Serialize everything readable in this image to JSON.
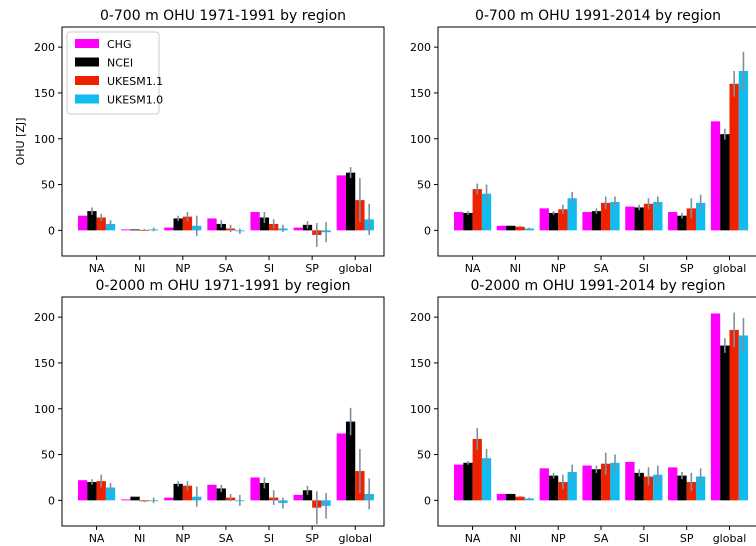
{
  "colors": {
    "CHG": "#ff00ff",
    "NCEI": "#000000",
    "UKESM1.1": "#ee2200",
    "UKESM1.0": "#11bbee",
    "error_bar": "#7f8fa0"
  },
  "chart_data": [
    {
      "type": "bar",
      "title": "0-700 m OHU 1971-1991 by region",
      "ylabel": "OHU [ZJ]",
      "categories": [
        "NA",
        "NI",
        "NP",
        "SA",
        "SI",
        "SP",
        "global"
      ],
      "ylim": [
        -28,
        222
      ],
      "yticks": [
        0,
        50,
        100,
        150,
        200
      ],
      "legend": [
        "CHG",
        "NCEI",
        "UKESM1.1",
        "UKESM1.0"
      ],
      "legend_position": "upper-left",
      "series": [
        {
          "name": "CHG",
          "values": [
            16,
            1,
            3,
            13,
            20,
            3,
            60
          ],
          "err": [
            null,
            null,
            null,
            null,
            null,
            null,
            null
          ]
        },
        {
          "name": "NCEI",
          "values": [
            21,
            1,
            13,
            7,
            14,
            6,
            63
          ],
          "err": [
            4,
            0.5,
            3,
            4,
            6,
            4,
            6
          ]
        },
        {
          "name": "UKESM1.1",
          "values": [
            14,
            0.5,
            15,
            2,
            7,
            -5,
            33
          ],
          "err": [
            4,
            1,
            5,
            4,
            5,
            13,
            24
          ]
        },
        {
          "name": "UKESM1.0",
          "values": [
            7,
            1,
            5,
            -1,
            2,
            -2,
            12
          ],
          "err": [
            4,
            2,
            11,
            3,
            4,
            11,
            17
          ]
        }
      ]
    },
    {
      "type": "bar",
      "title": "0-700 m OHU 1991-2014 by region",
      "ylabel": "",
      "categories": [
        "NA",
        "NI",
        "NP",
        "SA",
        "SI",
        "SP",
        "global"
      ],
      "ylim": [
        -28,
        222
      ],
      "yticks": [
        0,
        50,
        100,
        150,
        200
      ],
      "series": [
        {
          "name": "CHG",
          "values": [
            20,
            5,
            24,
            20,
            26,
            20,
            119
          ],
          "err": [
            null,
            null,
            null,
            null,
            null,
            null,
            null
          ]
        },
        {
          "name": "NCEI",
          "values": [
            19,
            5,
            19,
            21,
            25,
            16,
            105
          ],
          "err": [
            2,
            0.5,
            2,
            3,
            3,
            3,
            6
          ]
        },
        {
          "name": "UKESM1.1",
          "values": [
            45,
            4,
            23,
            30,
            29,
            24,
            160
          ],
          "err": [
            6,
            1,
            5,
            7,
            6,
            11,
            14
          ]
        },
        {
          "name": "UKESM1.0",
          "values": [
            40,
            2,
            35,
            31,
            31,
            30,
            174
          ],
          "err": [
            10,
            1,
            7,
            6,
            6,
            9,
            21
          ]
        }
      ]
    },
    {
      "type": "bar",
      "title": "0-2000 m OHU 1971-1991 by region",
      "ylabel": "",
      "categories": [
        "NA",
        "NI",
        "NP",
        "SA",
        "SI",
        "SP",
        "global"
      ],
      "ylim": [
        -28,
        222
      ],
      "yticks": [
        0,
        50,
        100,
        150,
        200
      ],
      "series": [
        {
          "name": "CHG",
          "values": [
            22,
            1,
            3,
            17,
            25,
            6,
            73
          ],
          "err": [
            null,
            null,
            null,
            null,
            null,
            null,
            null
          ]
        },
        {
          "name": "NCEI",
          "values": [
            20,
            4,
            18,
            13,
            19,
            11,
            86
          ],
          "err": [
            3,
            0.5,
            3,
            4,
            6,
            5,
            15
          ]
        },
        {
          "name": "UKESM1.1",
          "values": [
            21,
            -1,
            16,
            3,
            3,
            -8,
            32
          ],
          "err": [
            7,
            1,
            5,
            4,
            8,
            18,
            24
          ]
        },
        {
          "name": "UKESM1.0",
          "values": [
            14,
            0,
            4,
            0,
            -3,
            -6,
            7
          ],
          "err": [
            5,
            3,
            11,
            6,
            6,
            14,
            17
          ]
        }
      ]
    },
    {
      "type": "bar",
      "title": "0-2000 m OHU 1991-2014 by region",
      "ylabel": "",
      "categories": [
        "NA",
        "NI",
        "NP",
        "SA",
        "SI",
        "SP",
        "global"
      ],
      "ylim": [
        -28,
        222
      ],
      "yticks": [
        0,
        50,
        100,
        150,
        200
      ],
      "series": [
        {
          "name": "CHG",
          "values": [
            39,
            7,
            35,
            38,
            42,
            36,
            204
          ],
          "err": [
            null,
            null,
            null,
            null,
            null,
            null,
            null
          ]
        },
        {
          "name": "NCEI",
          "values": [
            41,
            7,
            27,
            34,
            30,
            27,
            169
          ],
          "err": [
            2,
            0.5,
            3,
            4,
            4,
            4,
            8
          ]
        },
        {
          "name": "UKESM1.1",
          "values": [
            67,
            4,
            20,
            40,
            26,
            20,
            186
          ],
          "err": [
            12,
            1,
            8,
            12,
            10,
            10,
            19
          ]
        },
        {
          "name": "UKESM1.0",
          "values": [
            46,
            2,
            31,
            41,
            28,
            26,
            180
          ],
          "err": [
            10,
            1,
            8,
            9,
            10,
            9,
            19
          ]
        }
      ]
    }
  ]
}
